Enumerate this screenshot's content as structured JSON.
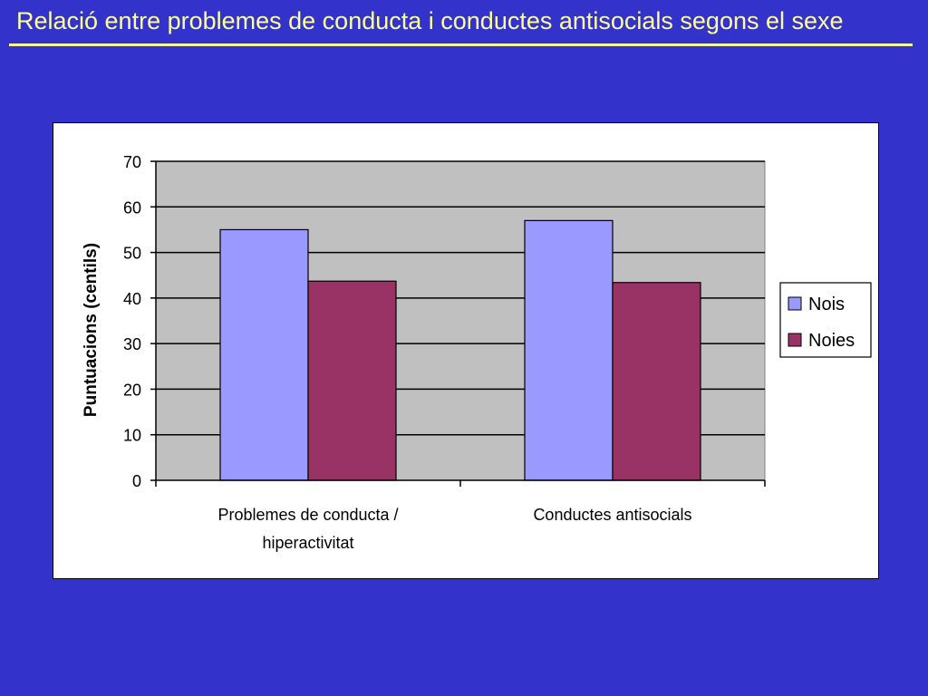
{
  "slide": {
    "title": "Relació entre problemes de conducta i conductes antisocials segons el sexe",
    "background_color": "#3333cc",
    "title_color": "#ffff99"
  },
  "chart_data": {
    "type": "bar",
    "categories": [
      [
        "Problemes de conducta /",
        "hiperactivitat"
      ],
      [
        "Conductes antisocials"
      ]
    ],
    "series": [
      {
        "name": "Nois",
        "values": [
          55,
          57
        ],
        "color": "#9999ff"
      },
      {
        "name": "Noies",
        "values": [
          43.7,
          43.4
        ],
        "color": "#993366"
      }
    ],
    "title": "",
    "xlabel": "",
    "ylabel": "Puntuacions (centils)",
    "ylim": [
      0,
      70
    ],
    "yticks": [
      0,
      10,
      20,
      30,
      40,
      50,
      60,
      70
    ],
    "grid": true,
    "plot_background": "#c0c0c0",
    "legend_position": "right"
  }
}
